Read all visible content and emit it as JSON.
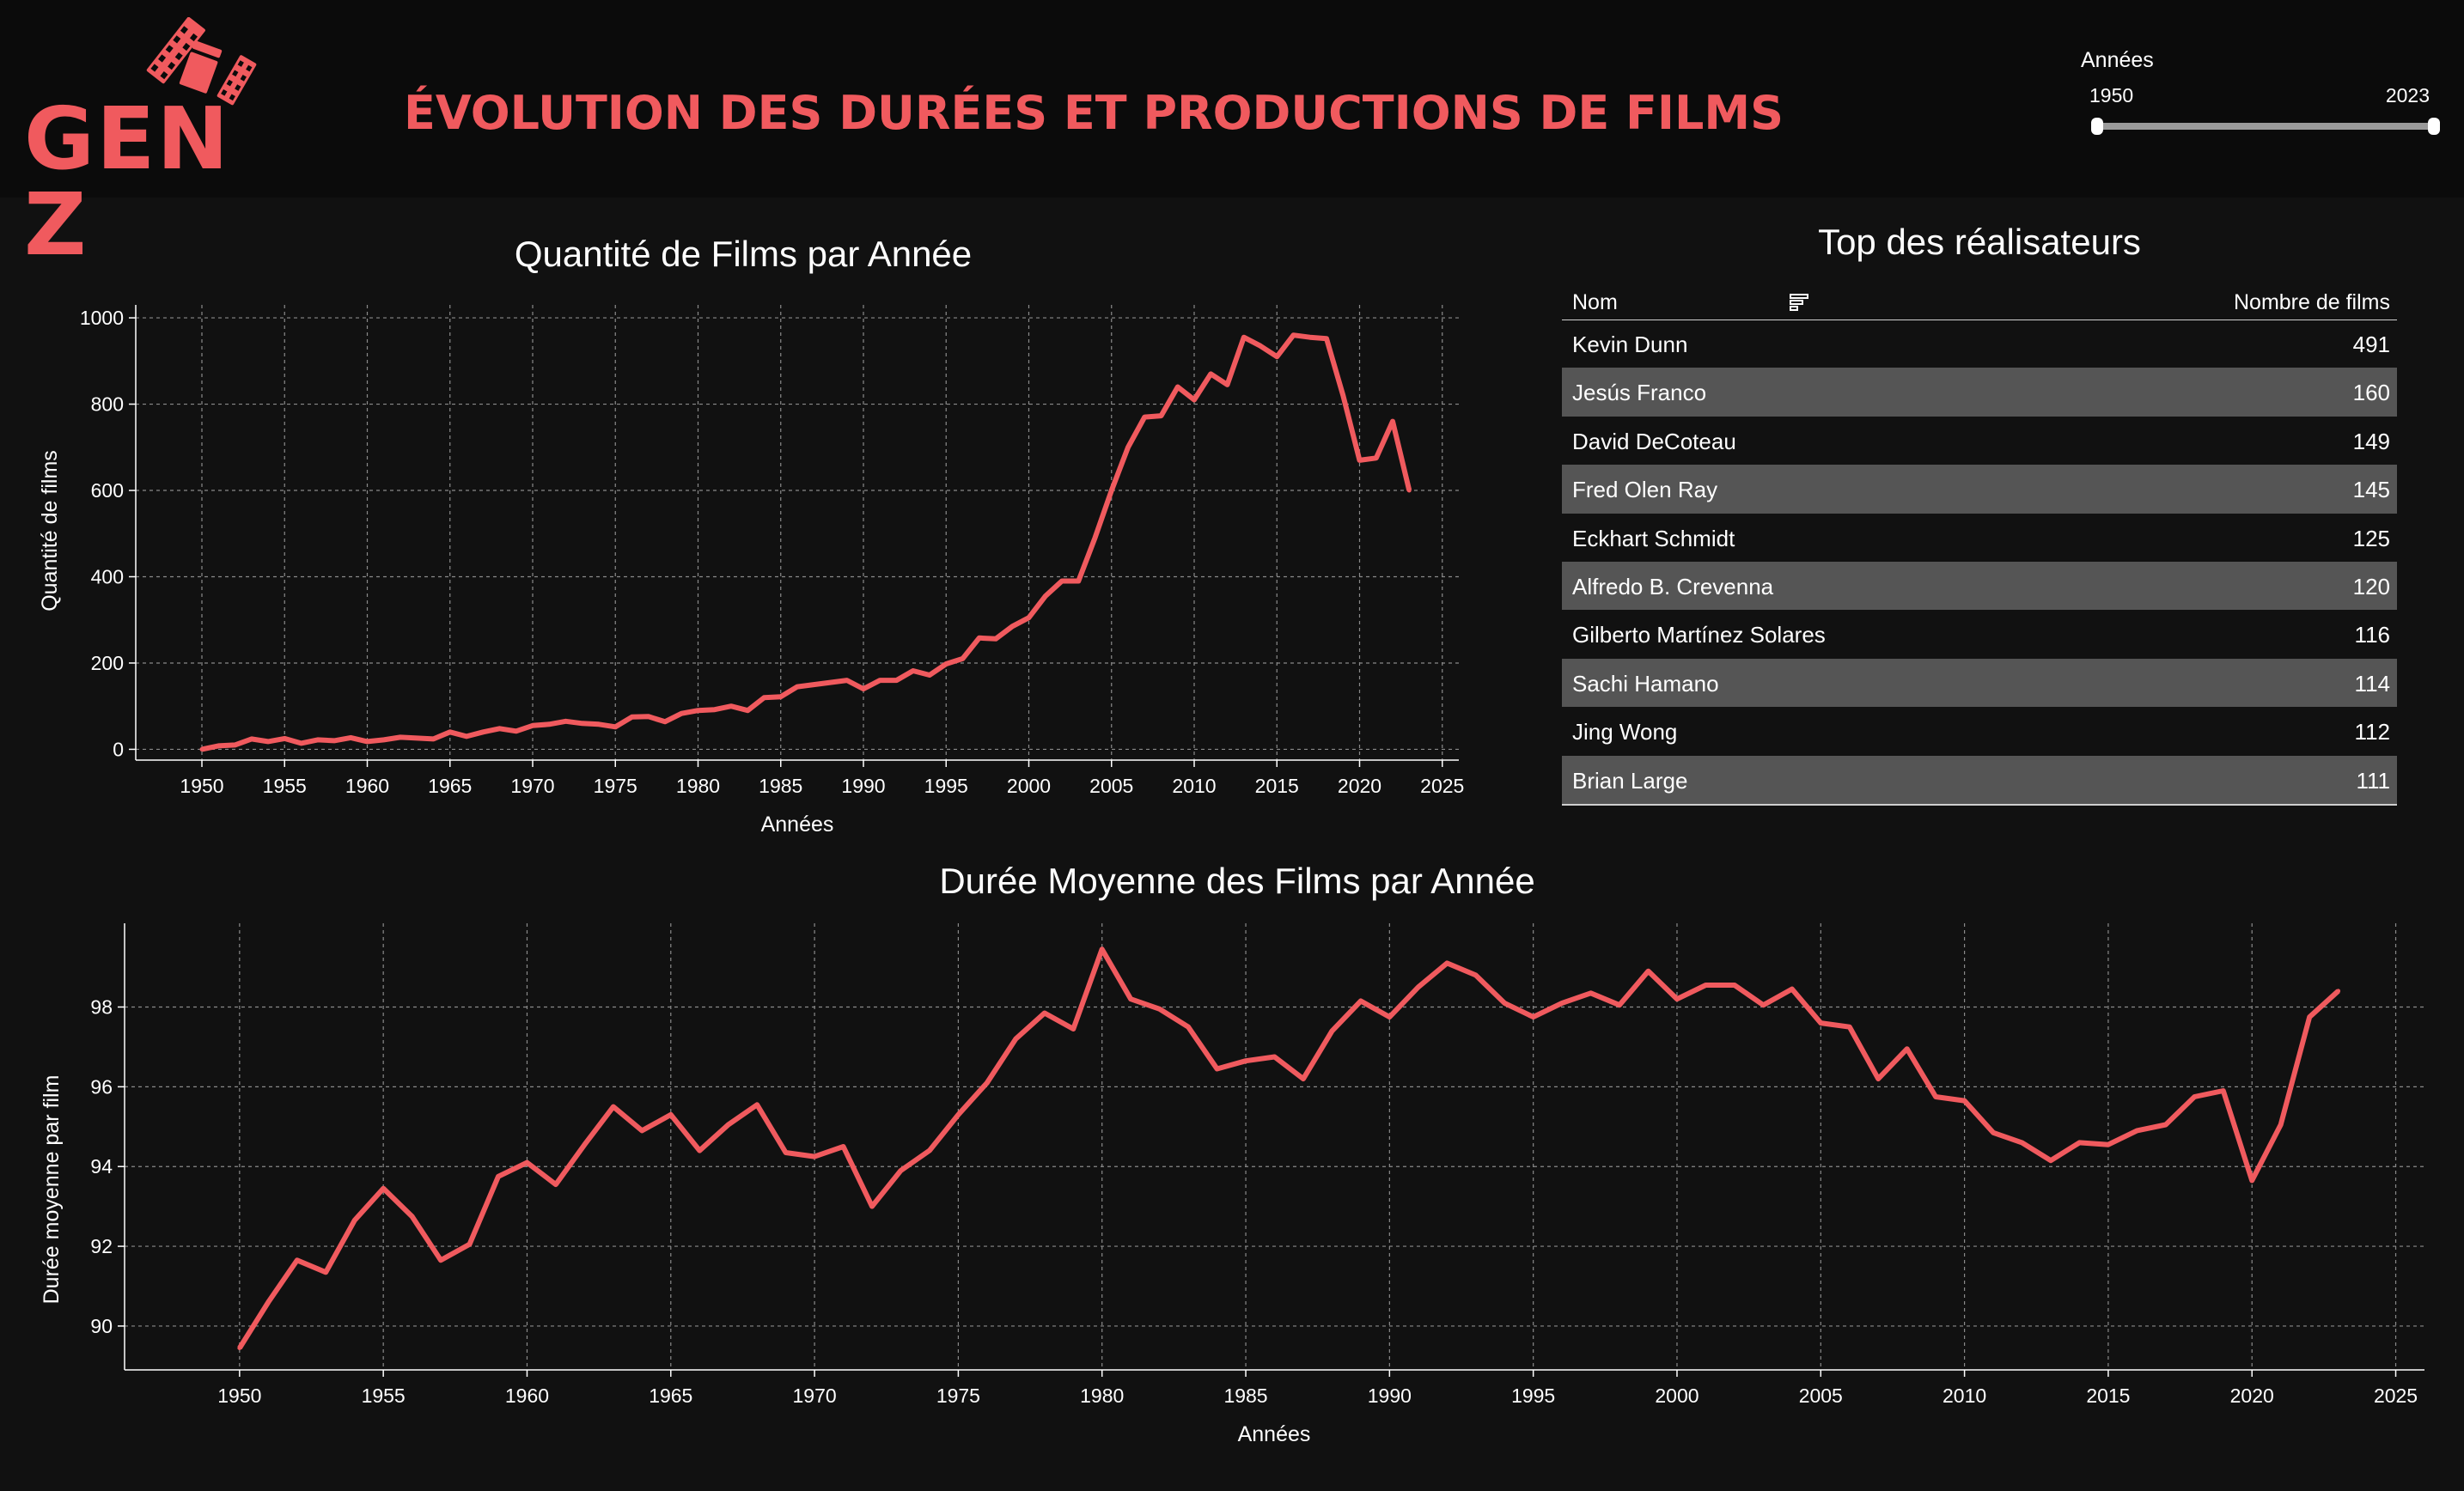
{
  "header": {
    "logo_text": "GEN Z",
    "title": "ÉVOLUTION DES DURÉES ET PRODUCTIONS DE FILMS"
  },
  "slider": {
    "label": "Années",
    "min_label": "1950",
    "max_label": "2023",
    "range": [
      1950,
      2023
    ]
  },
  "colors": {
    "accent": "#f05a5e",
    "background": "#111111",
    "header_background": "#0b0b0b",
    "row_alt": "#555555"
  },
  "icons": {
    "logo": "film-reel-icon",
    "filter": "filter-sort-icon"
  },
  "table": {
    "title": "Top des réalisateurs",
    "col_name": "Nom",
    "col_count": "Nombre de films",
    "rows": [
      {
        "name": "Kevin Dunn",
        "count": "491"
      },
      {
        "name": "Jesús Franco",
        "count": "160"
      },
      {
        "name": "David DeCoteau",
        "count": "149"
      },
      {
        "name": "Fred Olen Ray",
        "count": "145"
      },
      {
        "name": "Eckhart Schmidt",
        "count": "125"
      },
      {
        "name": "Alfredo B. Crevenna",
        "count": "120"
      },
      {
        "name": "Gilberto Martínez Solares",
        "count": "116"
      },
      {
        "name": "Sachi Hamano",
        "count": "114"
      },
      {
        "name": "Jing Wong",
        "count": "112"
      },
      {
        "name": "Brian Large",
        "count": "111"
      }
    ]
  },
  "chart_data": [
    {
      "type": "line",
      "title": "Quantité de Films par Année",
      "xlabel": "Années",
      "ylabel": "Quantité de films",
      "xlim": [
        1946,
        2026
      ],
      "ylim": [
        -25,
        1030
      ],
      "xticks": [
        1950,
        1955,
        1960,
        1965,
        1970,
        1975,
        1980,
        1985,
        1990,
        1995,
        2000,
        2005,
        2010,
        2015,
        2020,
        2025
      ],
      "yticks": [
        0,
        200,
        400,
        600,
        800,
        1000
      ],
      "grid": true,
      "color": "#f05a5e",
      "x": [
        1950,
        1951,
        1952,
        1953,
        1954,
        1955,
        1956,
        1957,
        1958,
        1959,
        1960,
        1961,
        1962,
        1963,
        1964,
        1965,
        1966,
        1967,
        1968,
        1969,
        1970,
        1971,
        1972,
        1973,
        1974,
        1975,
        1976,
        1977,
        1978,
        1979,
        1980,
        1981,
        1982,
        1983,
        1984,
        1985,
        1986,
        1987,
        1988,
        1989,
        1990,
        1991,
        1992,
        1993,
        1994,
        1995,
        1996,
        1997,
        1998,
        1999,
        2000,
        2001,
        2002,
        2003,
        2004,
        2005,
        2006,
        2007,
        2008,
        2009,
        2010,
        2011,
        2012,
        2013,
        2014,
        2015,
        2016,
        2017,
        2018,
        2019,
        2020,
        2021,
        2022,
        2023
      ],
      "y": [
        0,
        8,
        10,
        24,
        18,
        25,
        14,
        22,
        20,
        27,
        18,
        22,
        28,
        26,
        24,
        40,
        30,
        40,
        48,
        42,
        55,
        58,
        65,
        60,
        58,
        52,
        75,
        76,
        64,
        83,
        90,
        92,
        100,
        90,
        120,
        122,
        145,
        150,
        155,
        160,
        140,
        160,
        160,
        182,
        172,
        198,
        210,
        258,
        256,
        285,
        305,
        355,
        390,
        390,
        490,
        600,
        700,
        770,
        773,
        840,
        810,
        870,
        845,
        955,
        935,
        910,
        960,
        955,
        952,
        820,
        670,
        675,
        760,
        600
      ]
    },
    {
      "type": "line",
      "title": "Durée Moyenne des Films par Année",
      "xlabel": "Années",
      "ylabel": "Durée moyenne par film",
      "xlim": [
        1946,
        2026
      ],
      "ylim": [
        88.9,
        100.1
      ],
      "xticks": [
        1950,
        1955,
        1960,
        1965,
        1970,
        1975,
        1980,
        1985,
        1990,
        1995,
        2000,
        2005,
        2010,
        2015,
        2020,
        2025
      ],
      "yticks": [
        90,
        92,
        94,
        96,
        98
      ],
      "grid": true,
      "color": "#f05a5e",
      "x": [
        1950,
        1951,
        1952,
        1953,
        1954,
        1955,
        1956,
        1957,
        1958,
        1959,
        1960,
        1961,
        1962,
        1963,
        1964,
        1965,
        1966,
        1967,
        1968,
        1969,
        1970,
        1971,
        1972,
        1973,
        1974,
        1975,
        1976,
        1977,
        1978,
        1979,
        1980,
        1981,
        1982,
        1983,
        1984,
        1985,
        1986,
        1987,
        1988,
        1989,
        1990,
        1991,
        1992,
        1993,
        1994,
        1995,
        1996,
        1997,
        1998,
        1999,
        2000,
        2001,
        2002,
        2003,
        2004,
        2005,
        2006,
        2007,
        2008,
        2009,
        2010,
        2011,
        2012,
        2013,
        2014,
        2015,
        2016,
        2017,
        2018,
        2019,
        2020,
        2021,
        2022,
        2023
      ],
      "y": [
        89.45,
        90.6,
        91.65,
        91.35,
        92.65,
        93.45,
        92.75,
        91.65,
        92.05,
        93.75,
        94.1,
        93.55,
        94.55,
        95.5,
        94.9,
        95.3,
        94.4,
        95.05,
        95.55,
        94.35,
        94.25,
        94.5,
        93.0,
        93.9,
        94.4,
        95.3,
        96.1,
        97.2,
        97.85,
        97.45,
        99.45,
        98.2,
        97.95,
        97.5,
        96.45,
        96.65,
        96.75,
        96.2,
        97.4,
        98.15,
        97.75,
        98.5,
        99.1,
        98.8,
        98.1,
        97.75,
        98.1,
        98.35,
        98.05,
        98.9,
        98.2,
        98.55,
        98.55,
        98.05,
        98.45,
        97.6,
        97.5,
        96.2,
        96.95,
        95.75,
        95.65,
        94.85,
        94.6,
        94.15,
        94.6,
        94.55,
        94.9,
        95.05,
        95.75,
        95.9,
        93.65,
        95.05,
        97.75,
        98.4
      ]
    }
  ]
}
